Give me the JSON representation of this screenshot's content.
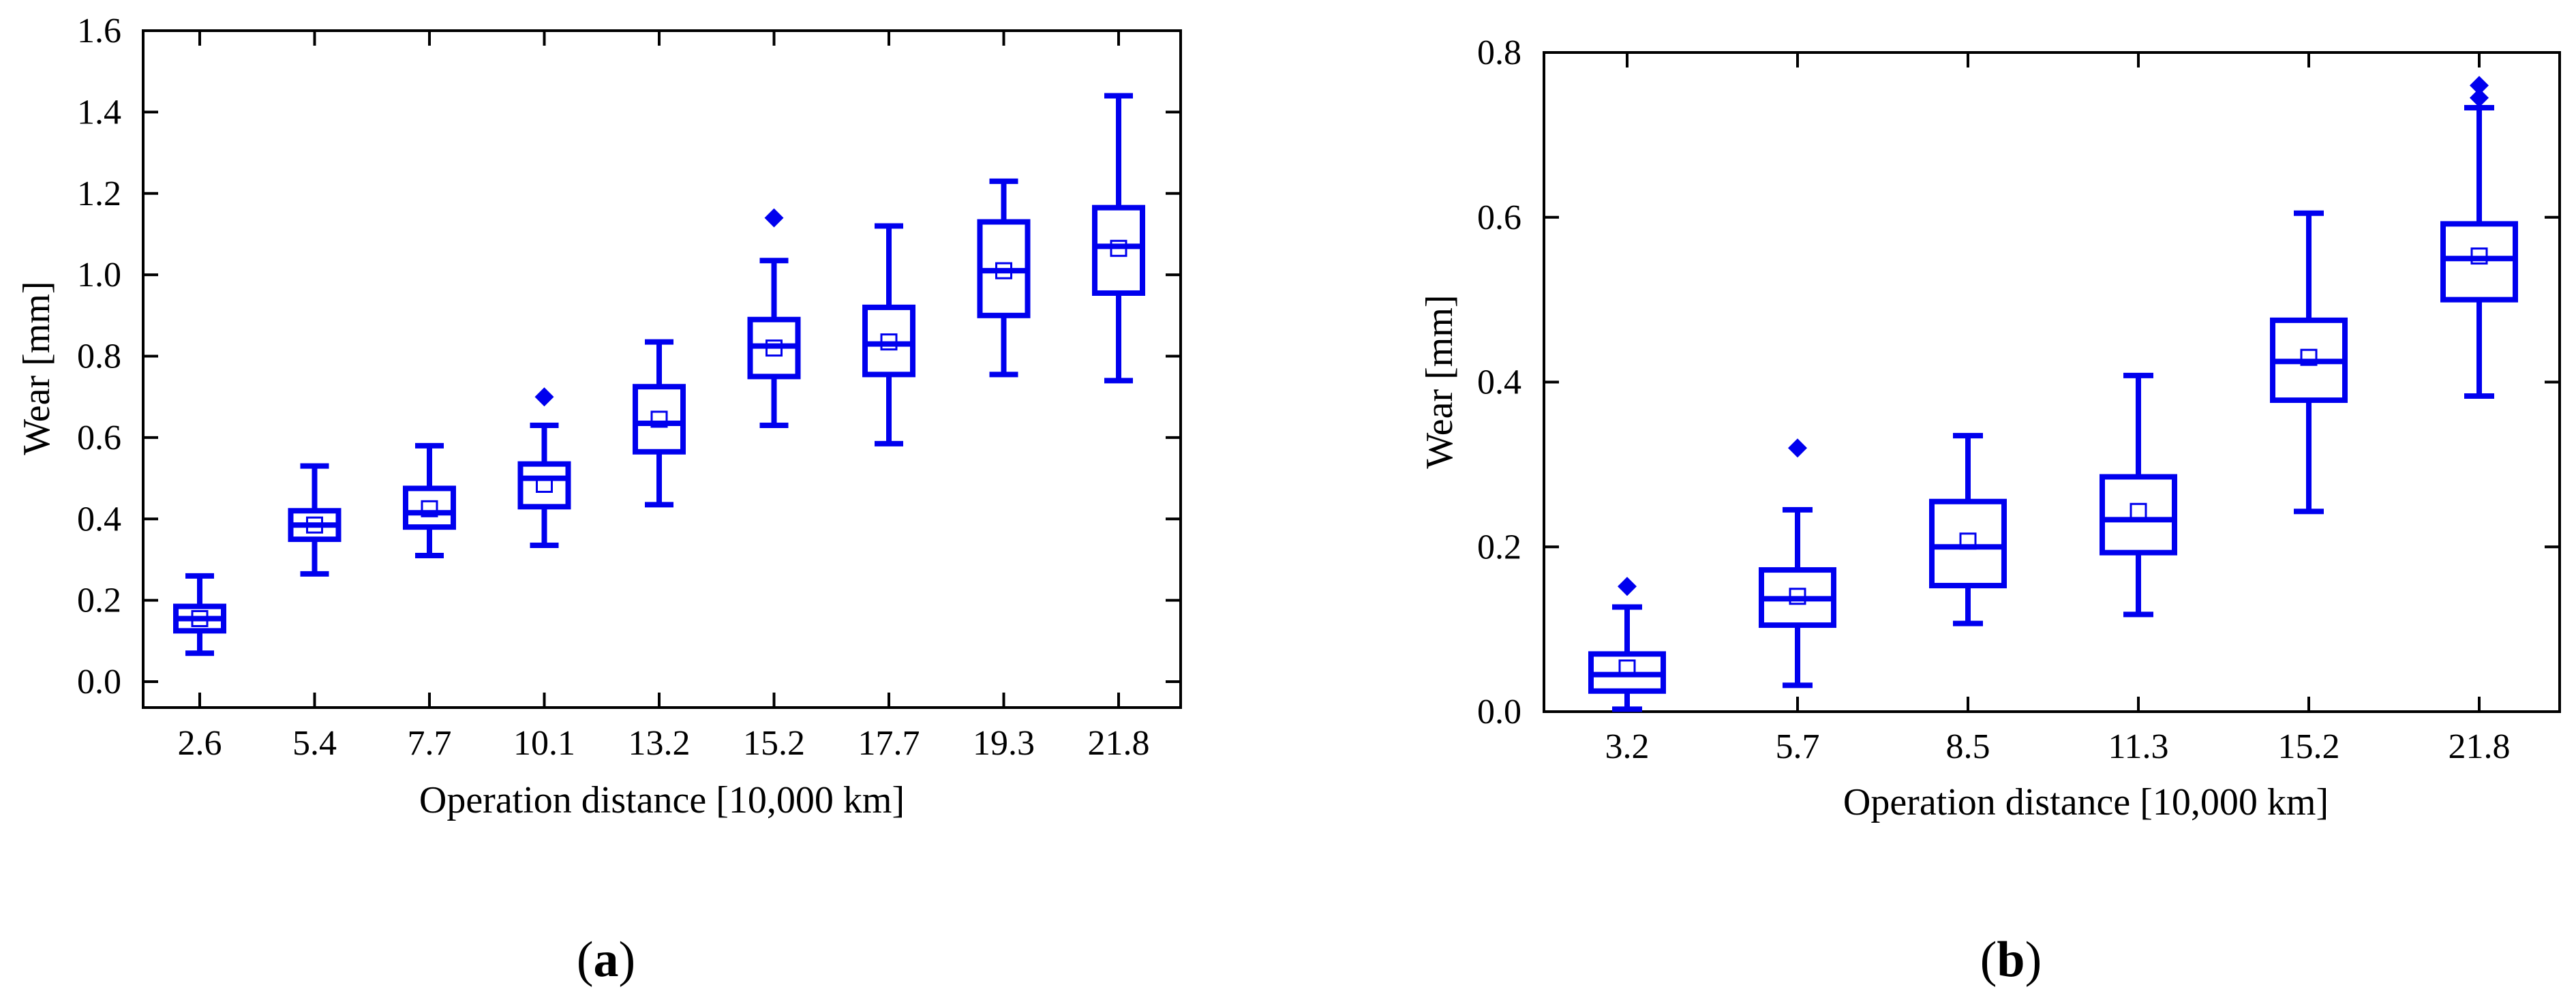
{
  "chart_data": [
    {
      "type": "boxplot",
      "panel": "a",
      "panel_label": "a",
      "xlabel": "Operation distance [10,000 km]",
      "ylabel": "Wear [mm]",
      "ylim": [
        -0.05,
        1.6
      ],
      "yticks": [
        0.0,
        0.2,
        0.4,
        0.6,
        0.8,
        1.0,
        1.2,
        1.4,
        1.6
      ],
      "ytick_labels": [
        "0.0",
        "0.2",
        "0.4",
        "0.6",
        "0.8",
        "1.0",
        "1.2",
        "1.4",
        "1.6"
      ],
      "color": "#0000ee",
      "categories": [
        "2.6",
        "5.4",
        "7.7",
        "10.1",
        "13.2",
        "15.2",
        "17.7",
        "19.3",
        "21.8"
      ],
      "boxes": [
        {
          "whisker_low": 0.07,
          "q1": 0.125,
          "median": 0.155,
          "q3": 0.185,
          "whisker_high": 0.26,
          "mean": 0.155,
          "outliers": []
        },
        {
          "whisker_low": 0.265,
          "q1": 0.35,
          "median": 0.385,
          "q3": 0.42,
          "whisker_high": 0.53,
          "mean": 0.385,
          "outliers": []
        },
        {
          "whisker_low": 0.31,
          "q1": 0.38,
          "median": 0.415,
          "q3": 0.475,
          "whisker_high": 0.58,
          "mean": 0.425,
          "outliers": []
        },
        {
          "whisker_low": 0.335,
          "q1": 0.43,
          "median": 0.5,
          "q3": 0.535,
          "whisker_high": 0.63,
          "mean": 0.485,
          "outliers": [
            0.7
          ]
        },
        {
          "whisker_low": 0.435,
          "q1": 0.565,
          "median": 0.635,
          "q3": 0.725,
          "whisker_high": 0.835,
          "mean": 0.645,
          "outliers": []
        },
        {
          "whisker_low": 0.63,
          "q1": 0.75,
          "median": 0.825,
          "q3": 0.89,
          "whisker_high": 1.035,
          "mean": 0.82,
          "outliers": [
            1.14
          ]
        },
        {
          "whisker_low": 0.585,
          "q1": 0.755,
          "median": 0.83,
          "q3": 0.92,
          "whisker_high": 1.12,
          "mean": 0.835,
          "outliers": []
        },
        {
          "whisker_low": 0.755,
          "q1": 0.9,
          "median": 1.01,
          "q3": 1.13,
          "whisker_high": 1.23,
          "mean": 1.01,
          "outliers": []
        },
        {
          "whisker_low": 0.74,
          "q1": 0.955,
          "median": 1.07,
          "q3": 1.165,
          "whisker_high": 1.44,
          "mean": 1.065,
          "outliers": []
        }
      ]
    },
    {
      "type": "boxplot",
      "panel": "b",
      "panel_label": "b",
      "xlabel": "Operation distance [10,000 km]",
      "ylabel": "Wear [mm]",
      "ylim": [
        0.0,
        0.8
      ],
      "yticks": [
        0.0,
        0.2,
        0.4,
        0.6,
        0.8
      ],
      "ytick_labels": [
        "0.0",
        "0.2",
        "0.4",
        "0.6",
        "0.8"
      ],
      "color": "#0000ee",
      "categories": [
        "3.2",
        "5.7",
        "8.5",
        "11.3",
        "15.2",
        "21.8"
      ],
      "boxes": [
        {
          "whisker_low": 0.003,
          "q1": 0.025,
          "median": 0.045,
          "q3": 0.07,
          "whisker_high": 0.127,
          "mean": 0.053,
          "outliers": [
            0.152
          ]
        },
        {
          "whisker_low": 0.032,
          "q1": 0.105,
          "median": 0.137,
          "q3": 0.172,
          "whisker_high": 0.245,
          "mean": 0.14,
          "outliers": [
            0.32
          ]
        },
        {
          "whisker_low": 0.107,
          "q1": 0.153,
          "median": 0.2,
          "q3": 0.255,
          "whisker_high": 0.335,
          "mean": 0.207,
          "outliers": []
        },
        {
          "whisker_low": 0.118,
          "q1": 0.193,
          "median": 0.233,
          "q3": 0.285,
          "whisker_high": 0.408,
          "mean": 0.243,
          "outliers": []
        },
        {
          "whisker_low": 0.243,
          "q1": 0.378,
          "median": 0.425,
          "q3": 0.475,
          "whisker_high": 0.605,
          "mean": 0.43,
          "outliers": []
        },
        {
          "whisker_low": 0.383,
          "q1": 0.5,
          "median": 0.55,
          "q3": 0.592,
          "whisker_high": 0.733,
          "mean": 0.553,
          "outliers": [
            0.745,
            0.76
          ]
        }
      ]
    }
  ]
}
